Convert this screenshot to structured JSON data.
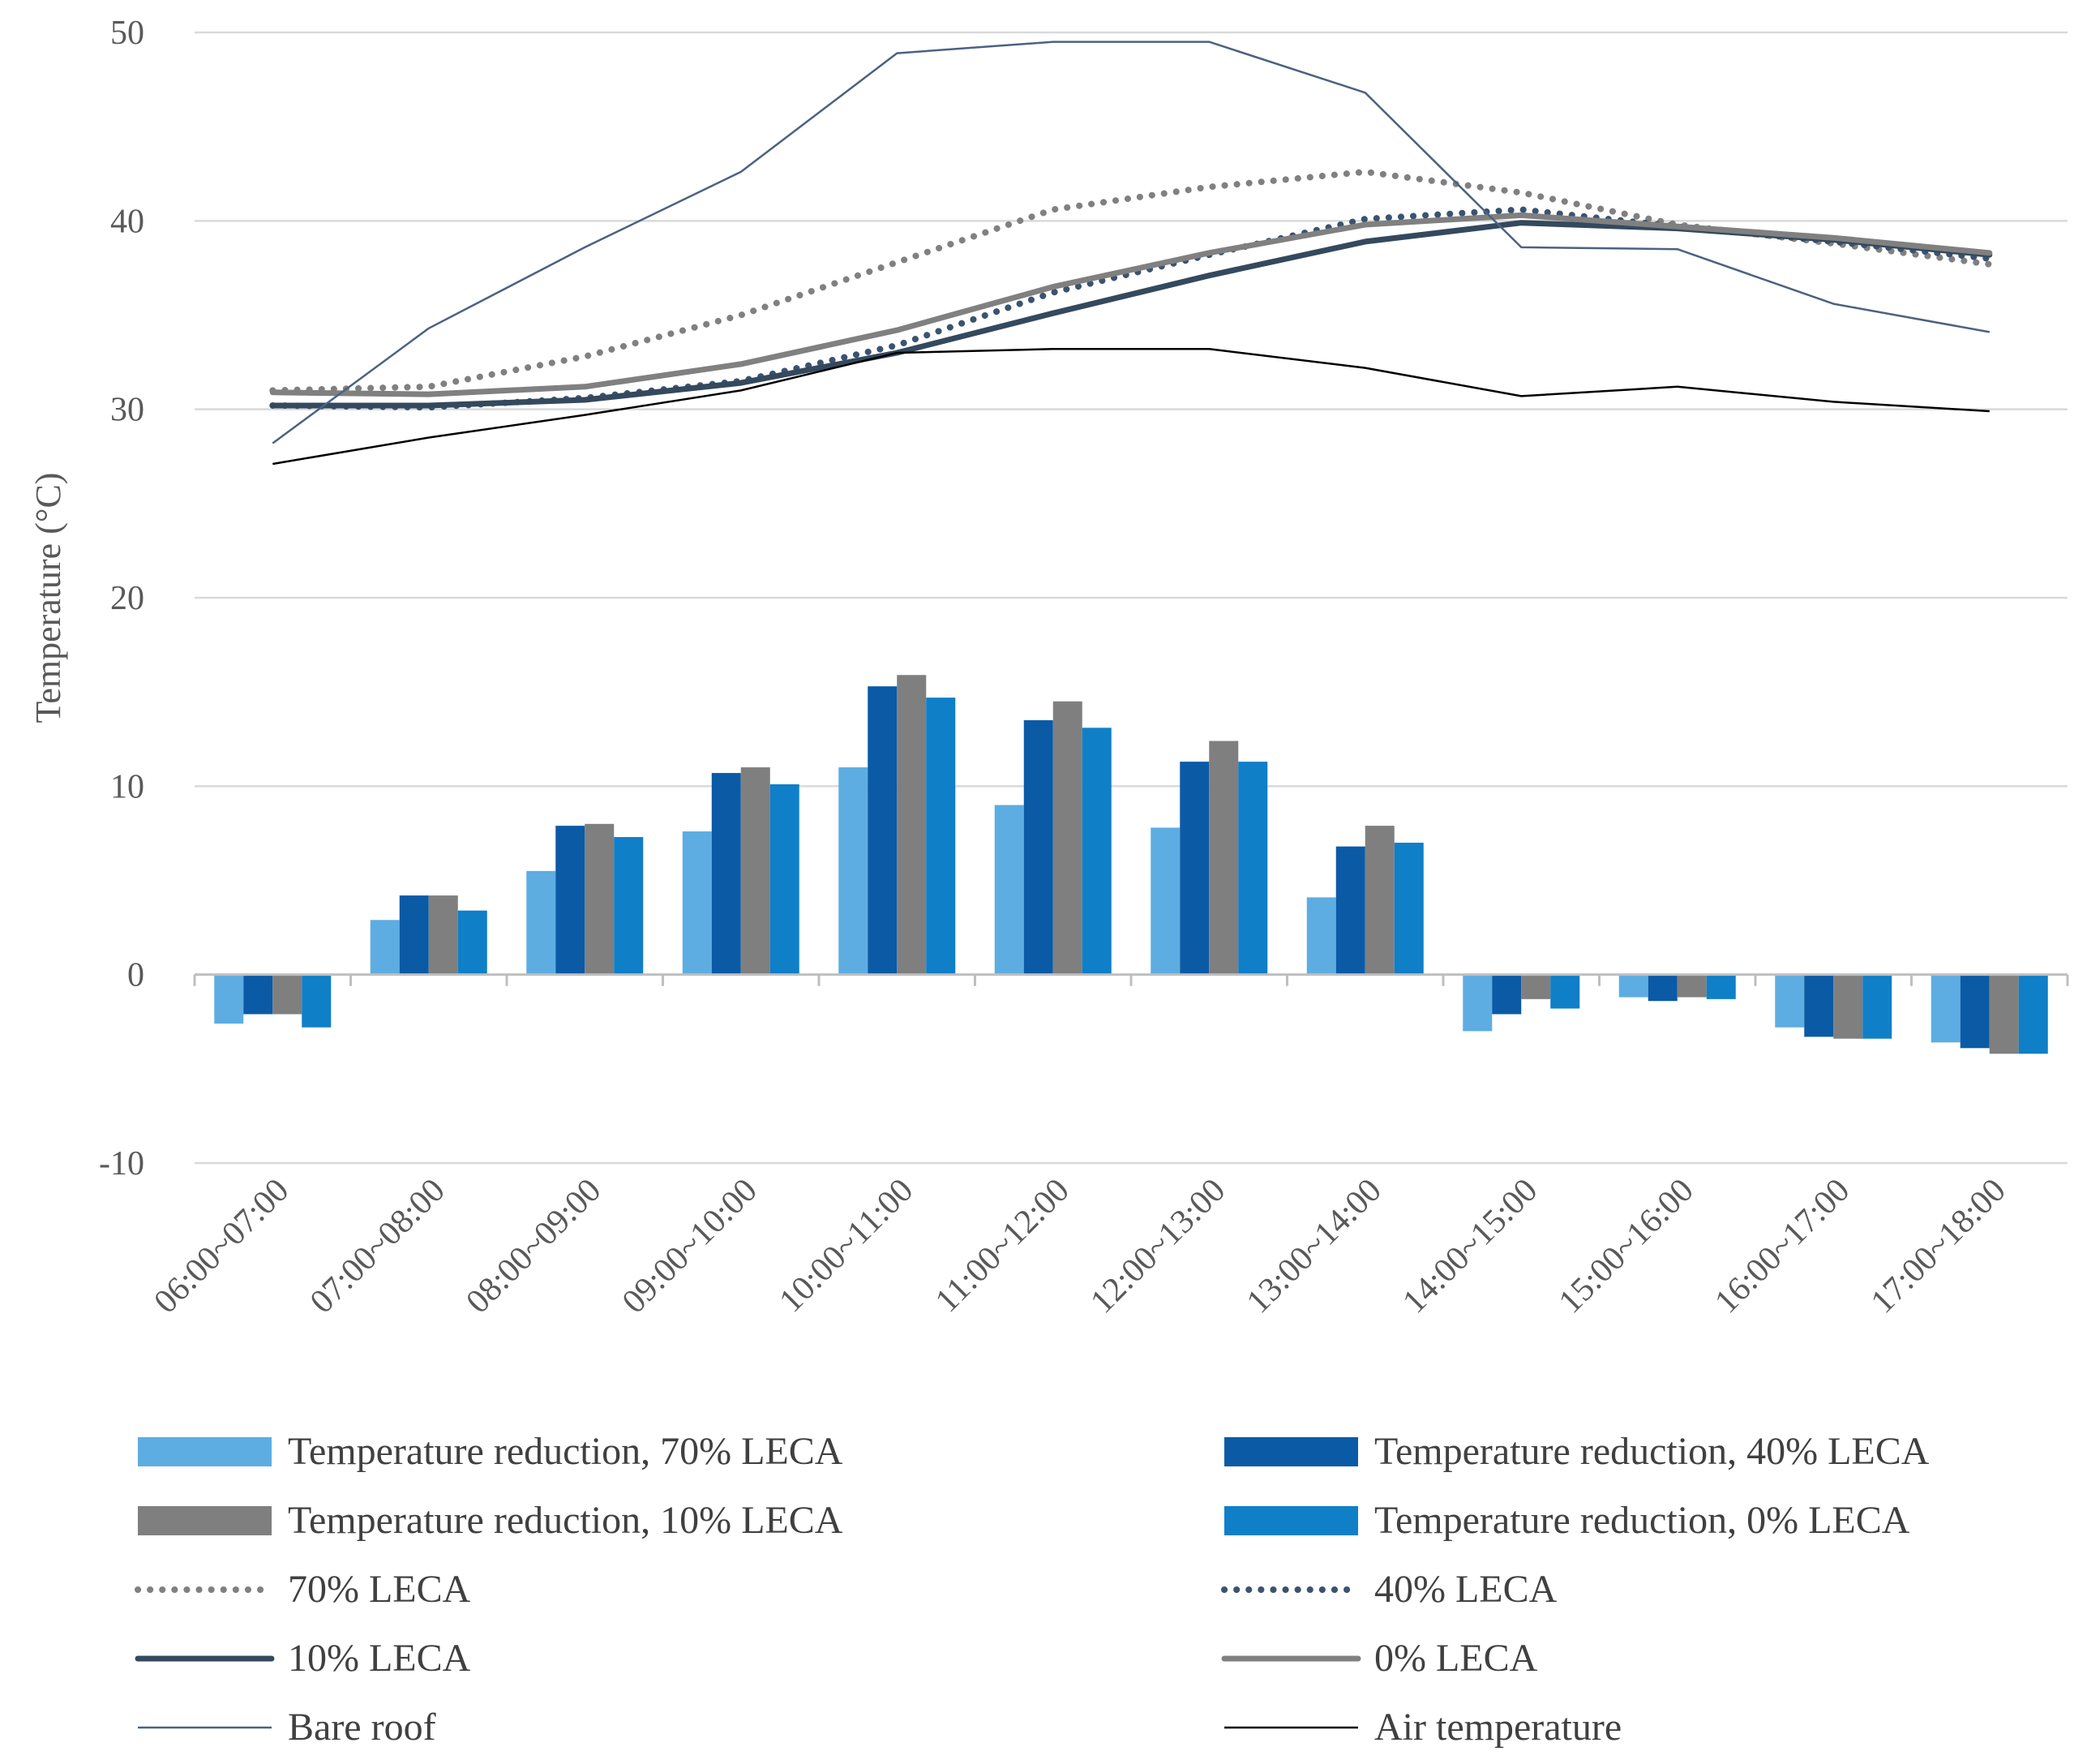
{
  "chart_data": {
    "type": "bar+line",
    "title": "",
    "xlabel": "",
    "ylabel": "Temperature (°C)",
    "ylim": [
      -10,
      50
    ],
    "yticks": [
      -10,
      0,
      10,
      20,
      30,
      40,
      50
    ],
    "grid": true,
    "legend_position": "bottom",
    "categories": [
      "06:00~07:00",
      "07:00~08:00",
      "08:00~09:00",
      "09:00~10:00",
      "10:00~11:00",
      "11:00~12:00",
      "12:00~13:00",
      "13:00~14:00",
      "14:00~15:00",
      "15:00~16:00",
      "16:00~17:00",
      "17:00~18:00"
    ],
    "bar_series": [
      {
        "name": "Temperature reduction, 70% LECA",
        "color": "#5dade2",
        "values": [
          -2.6,
          2.9,
          5.5,
          7.6,
          11.0,
          9.0,
          7.8,
          4.1,
          -3.0,
          -1.2,
          -2.8,
          -3.6
        ]
      },
      {
        "name": "Temperature reduction, 40% LECA",
        "color": "#0b5aa6",
        "values": [
          -2.1,
          4.2,
          7.9,
          10.7,
          15.3,
          13.5,
          11.3,
          6.8,
          -2.1,
          -1.4,
          -3.3,
          -3.9
        ]
      },
      {
        "name": "Temperature reduction, 10% LECA",
        "color": "#7f7f7f",
        "values": [
          -2.1,
          4.2,
          8.0,
          11.0,
          15.9,
          14.5,
          12.4,
          7.9,
          -1.3,
          -1.2,
          -3.4,
          -4.2
        ]
      },
      {
        "name": "Temperature reduction, 0% LECA",
        "color": "#0f7fc8",
        "values": [
          -2.8,
          3.4,
          7.3,
          10.1,
          14.7,
          13.1,
          11.3,
          7.0,
          -1.8,
          -1.3,
          -3.4,
          -4.2
        ]
      }
    ],
    "line_series": [
      {
        "name": "70% LECA",
        "color": "#808080",
        "style": "dotted",
        "values": [
          31.0,
          31.2,
          32.8,
          35.0,
          37.8,
          40.6,
          41.8,
          42.6,
          41.5,
          39.8,
          38.8,
          37.7
        ]
      },
      {
        "name": "40% LECA",
        "color": "#3a5370",
        "style": "dotted",
        "values": [
          30.2,
          30.1,
          30.6,
          31.5,
          33.4,
          36.2,
          38.2,
          40.1,
          40.6,
          39.7,
          38.9,
          38.0
        ]
      },
      {
        "name": "10% LECA",
        "color": "#34495e",
        "style": "thick",
        "values": [
          30.2,
          30.2,
          30.5,
          31.4,
          33.0,
          35.1,
          37.1,
          38.9,
          39.9,
          39.6,
          39.0,
          38.2
        ]
      },
      {
        "name": "0% LECA",
        "color": "#808080",
        "style": "thick",
        "values": [
          30.9,
          30.8,
          31.2,
          32.4,
          34.2,
          36.5,
          38.3,
          39.8,
          40.3,
          39.7,
          39.1,
          38.3
        ]
      },
      {
        "name": "Bare roof",
        "color": "#4b6281",
        "style": "thin",
        "values": [
          28.2,
          34.3,
          38.6,
          42.6,
          48.9,
          49.5,
          49.5,
          46.8,
          38.6,
          38.5,
          35.6,
          34.1
        ]
      },
      {
        "name": "Air temperature",
        "color": "#000000",
        "style": "thin",
        "values": [
          27.1,
          28.5,
          29.7,
          31.0,
          33.0,
          33.2,
          33.2,
          32.2,
          30.7,
          31.2,
          30.4,
          29.9
        ]
      }
    ],
    "legend_order": [
      "Temperature reduction, 70% LECA",
      "Temperature reduction, 40% LECA",
      "Temperature reduction, 10% LECA",
      "Temperature reduction, 0% LECA",
      "70% LECA",
      "40% LECA",
      "10% LECA",
      "0% LECA",
      "Bare roof",
      "Air temperature"
    ]
  }
}
